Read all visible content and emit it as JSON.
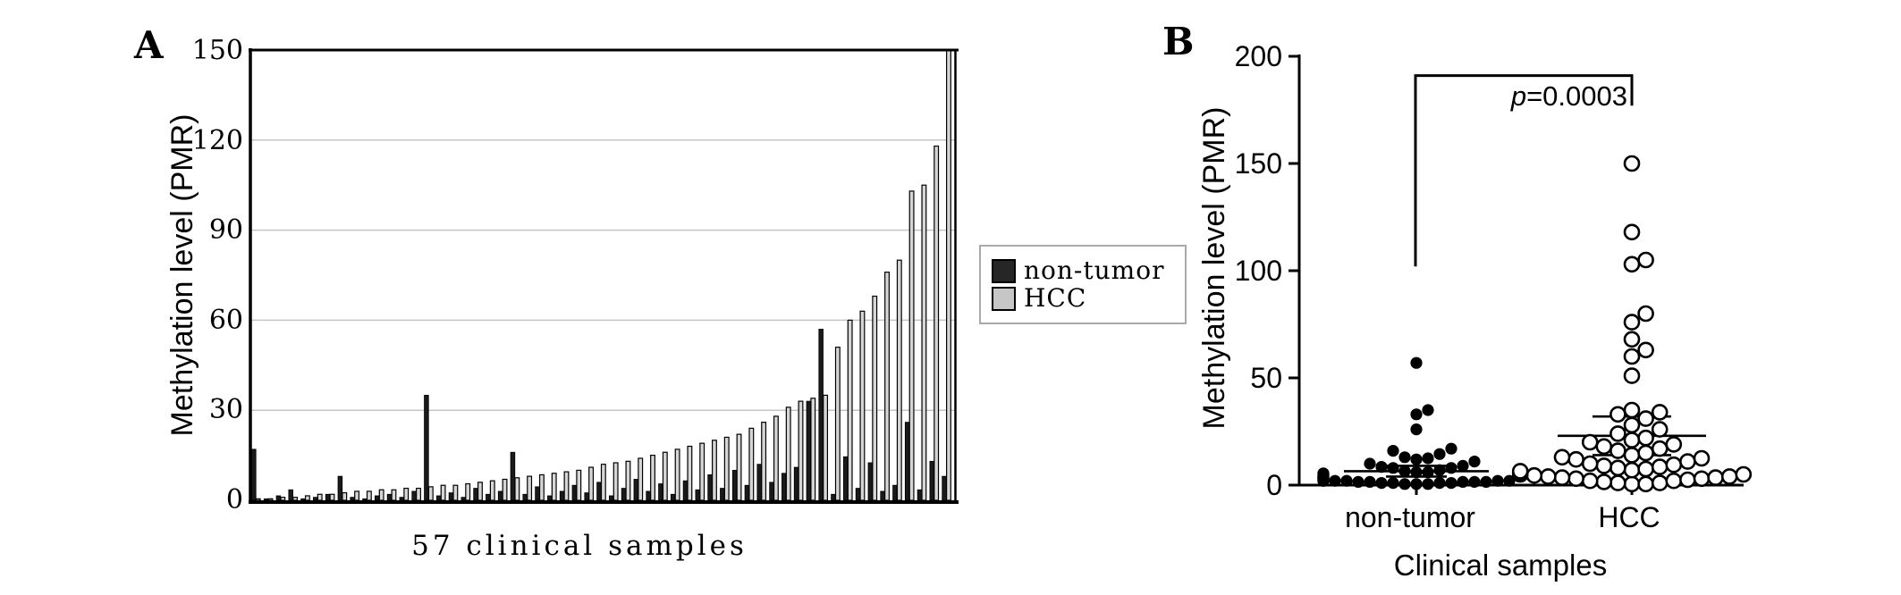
{
  "figure": {
    "panel_a": {
      "label": "A",
      "y_title": "Methylation level (PMR)",
      "x_title": "57 clinical samples",
      "y_ticks": [
        "0",
        "30",
        "60",
        "90",
        "120",
        "150"
      ],
      "legend": [
        {
          "label": "non-tumor",
          "color": "#262626"
        },
        {
          "label": "HCC",
          "color": "#c6c6c6"
        }
      ]
    },
    "panel_b": {
      "label": "B",
      "y_title": "Methylation level (PMR)",
      "x_title": "Clinical samples",
      "y_ticks": [
        "0",
        "50",
        "100",
        "150",
        "200"
      ],
      "categories": [
        "non-tumor",
        "HCC"
      ],
      "p_italic": "p",
      "p_value": "=0.0003"
    }
  },
  "chart_data": [
    {
      "id": "panel_a",
      "type": "bar",
      "title": "",
      "xlabel": "57 clinical samples",
      "ylabel": "Methylation level (PMR)",
      "ylim": [
        0,
        150
      ],
      "yticks": [
        0,
        30,
        60,
        90,
        120,
        150
      ],
      "grid": true,
      "legend_position": "right",
      "n_samples": 57,
      "series": [
        {
          "name": "non-tumor",
          "color": "#1a1a1a",
          "values": [
            17,
            0.5,
            1.5,
            3.5,
            0.5,
            1,
            2,
            8,
            1,
            0.5,
            1.5,
            2,
            1,
            3,
            35,
            1.5,
            2.5,
            1,
            4,
            2,
            3,
            16,
            2,
            4.5,
            1.5,
            3,
            5,
            2.5,
            6,
            1.5,
            4,
            7,
            3,
            5.5,
            2,
            6.5,
            3.5,
            8.5,
            4,
            10,
            5,
            12,
            6,
            9,
            11,
            33,
            57,
            2,
            14.5,
            4,
            12.5,
            3,
            5,
            26,
            3.5,
            13,
            8
          ]
        },
        {
          "name": "HCC",
          "color": "#d6d6d6",
          "values": [
            0.5,
            0.5,
            1,
            1,
            1.5,
            2,
            2,
            2.5,
            3,
            3,
            3.5,
            3.5,
            4,
            4,
            4.5,
            5,
            5,
            5.5,
            6,
            6.5,
            7,
            7.5,
            8,
            8.5,
            9,
            9.5,
            10,
            11,
            12,
            12.5,
            13,
            14,
            15,
            16,
            17,
            18,
            19,
            20,
            21,
            22,
            24,
            26,
            28,
            31,
            33,
            34,
            35,
            51,
            60,
            63,
            68,
            76,
            80,
            103,
            105,
            118,
            150
          ]
        }
      ]
    },
    {
      "id": "panel_b",
      "type": "scatter",
      "xlabel": "Clinical samples",
      "ylabel": "Methylation level (PMR)",
      "ylim": [
        0,
        200
      ],
      "yticks": [
        0,
        50,
        100,
        150,
        200
      ],
      "categories": [
        "non-tumor",
        "HCC"
      ],
      "annotation": "p=0.0003",
      "series": [
        {
          "name": "non-tumor",
          "marker": "filled-circle",
          "values": [
            17,
            0.5,
            1.5,
            3.5,
            0.5,
            1,
            2,
            8,
            1,
            0.5,
            1.5,
            2,
            1,
            3,
            35,
            1.5,
            2.5,
            1,
            4,
            2,
            3,
            16,
            2,
            4.5,
            1.5,
            3,
            5,
            2.5,
            6,
            1.5,
            4,
            7,
            3,
            5.5,
            2,
            6.5,
            3.5,
            8.5,
            4,
            10,
            5,
            12,
            6,
            9,
            11,
            33,
            57,
            2,
            14.5,
            4,
            12.5,
            3,
            5,
            26,
            3.5,
            13,
            8
          ]
        },
        {
          "name": "HCC",
          "marker": "open-circle",
          "values": [
            0.5,
            0.5,
            1,
            1,
            1.5,
            2,
            2,
            2.5,
            3,
            3,
            3.5,
            3.5,
            4,
            4,
            4.5,
            5,
            5,
            5.5,
            6,
            6.5,
            7,
            7.5,
            8,
            8.5,
            9,
            9.5,
            10,
            11,
            12,
            12.5,
            13,
            14,
            15,
            16,
            17,
            18,
            19,
            20,
            21,
            22,
            24,
            26,
            28,
            31,
            33,
            34,
            35,
            51,
            60,
            63,
            68,
            76,
            80,
            103,
            105,
            118,
            150
          ]
        }
      ],
      "stats": {
        "non_tumor": {
          "mean": 6.5,
          "upper": 9,
          "lower": 4
        },
        "hcc": {
          "mean": 23,
          "upper": 32,
          "lower": 14
        }
      }
    }
  ]
}
